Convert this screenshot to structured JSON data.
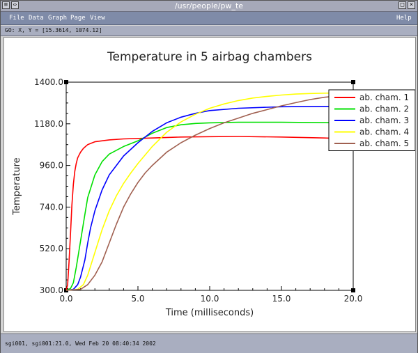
{
  "window": {
    "title": "/usr/people/pw_te",
    "close_glyph": "×",
    "move_glyph": "⇔",
    "maximize_glyph": "□",
    "menu_glyph": "≡"
  },
  "menubar": {
    "items": [
      {
        "label": "File"
      },
      {
        "label": "Data"
      },
      {
        "label": "Graph"
      },
      {
        "label": "Page"
      },
      {
        "label": "View"
      }
    ],
    "help_label": "Help"
  },
  "coord_readout": "GO: X, Y = [15.3614, 1074.12]",
  "status": "sgi001, sgi001:21.0, Wed Feb 20 08:40:34 2002",
  "chart_data": {
    "type": "line",
    "title": "Temperature in 5 airbag chambers",
    "xlabel": "Time (milliseconds)",
    "ylabel": "Temperature",
    "xlim": [
      0,
      20
    ],
    "ylim": [
      300,
      1400
    ],
    "x_ticks": [
      "0.0",
      "5.0",
      "10.0",
      "15.0",
      "20.0"
    ],
    "y_ticks": [
      "300.0",
      "520.0",
      "740.0",
      "960.0",
      "1180.0",
      "1400.0"
    ],
    "legend_position": "top-right",
    "grid": false,
    "series": [
      {
        "name": "ab. cham. 1",
        "color": "#ff0000",
        "x": [
          0,
          0.1,
          0.2,
          0.3,
          0.4,
          0.5,
          0.6,
          0.7,
          0.8,
          0.9,
          1.0,
          1.2,
          1.5,
          2.0,
          3.0,
          4.0,
          6.0,
          8.0,
          10.0,
          12.0,
          15.0,
          18.0,
          20.0
        ],
        "values": [
          300,
          330,
          450,
          600,
          750,
          860,
          930,
          970,
          1000,
          1015,
          1030,
          1050,
          1070,
          1085,
          1095,
          1100,
          1105,
          1110,
          1112,
          1113,
          1110,
          1105,
          1100
        ]
      },
      {
        "name": "ab. cham. 2",
        "color": "#00e000",
        "x": [
          0,
          0.3,
          0.5,
          0.7,
          1.0,
          1.3,
          1.5,
          2.0,
          2.5,
          3.0,
          4.0,
          5.0,
          6.0,
          7.0,
          8.0,
          9.0,
          10.0,
          12.0,
          15.0,
          18.0,
          20.0
        ],
        "values": [
          300,
          310,
          340,
          420,
          560,
          700,
          790,
          910,
          980,
          1020,
          1060,
          1090,
          1130,
          1160,
          1175,
          1182,
          1185,
          1188,
          1188,
          1186,
          1185
        ]
      },
      {
        "name": "ab. cham. 3",
        "color": "#0000ff",
        "x": [
          0,
          0.5,
          0.8,
          1.0,
          1.3,
          1.5,
          1.7,
          2.0,
          2.5,
          3.0,
          3.5,
          4.0,
          5.0,
          6.0,
          7.0,
          8.0,
          9.0,
          10.0,
          12.0,
          15.0,
          18.0,
          20.0
        ],
        "values": [
          300,
          305,
          330,
          370,
          460,
          550,
          630,
          720,
          830,
          910,
          960,
          1010,
          1080,
          1140,
          1185,
          1215,
          1235,
          1250,
          1262,
          1270,
          1272,
          1272
        ]
      },
      {
        "name": "ab. cham. 4",
        "color": "#ffff00",
        "x": [
          0,
          0.8,
          1.2,
          1.5,
          2.0,
          2.5,
          3.0,
          3.5,
          4.0,
          4.5,
          5.0,
          6.0,
          7.0,
          8.0,
          9.0,
          10.0,
          11.0,
          12.0,
          13.0,
          14.0,
          15.0,
          16.0,
          17.0,
          18.0,
          20.0
        ],
        "values": [
          300,
          305,
          330,
          380,
          500,
          620,
          720,
          800,
          865,
          920,
          970,
          1060,
          1135,
          1190,
          1230,
          1262,
          1285,
          1303,
          1316,
          1325,
          1332,
          1337,
          1340,
          1342,
          1345
        ]
      },
      {
        "name": "ab. cham. 5",
        "color": "#a06050",
        "x": [
          0,
          1.0,
          1.5,
          2.0,
          2.5,
          3.0,
          3.5,
          4.0,
          4.5,
          5.0,
          5.5,
          6.0,
          7.0,
          8.0,
          9.0,
          10.0,
          11.0,
          12.0,
          13.0,
          14.0,
          15.0,
          16.0,
          17.0,
          18.0,
          20.0
        ],
        "values": [
          300,
          305,
          330,
          380,
          450,
          550,
          650,
          740,
          810,
          870,
          920,
          960,
          1030,
          1080,
          1120,
          1155,
          1185,
          1210,
          1235,
          1255,
          1275,
          1292,
          1308,
          1320,
          1335
        ]
      }
    ]
  }
}
